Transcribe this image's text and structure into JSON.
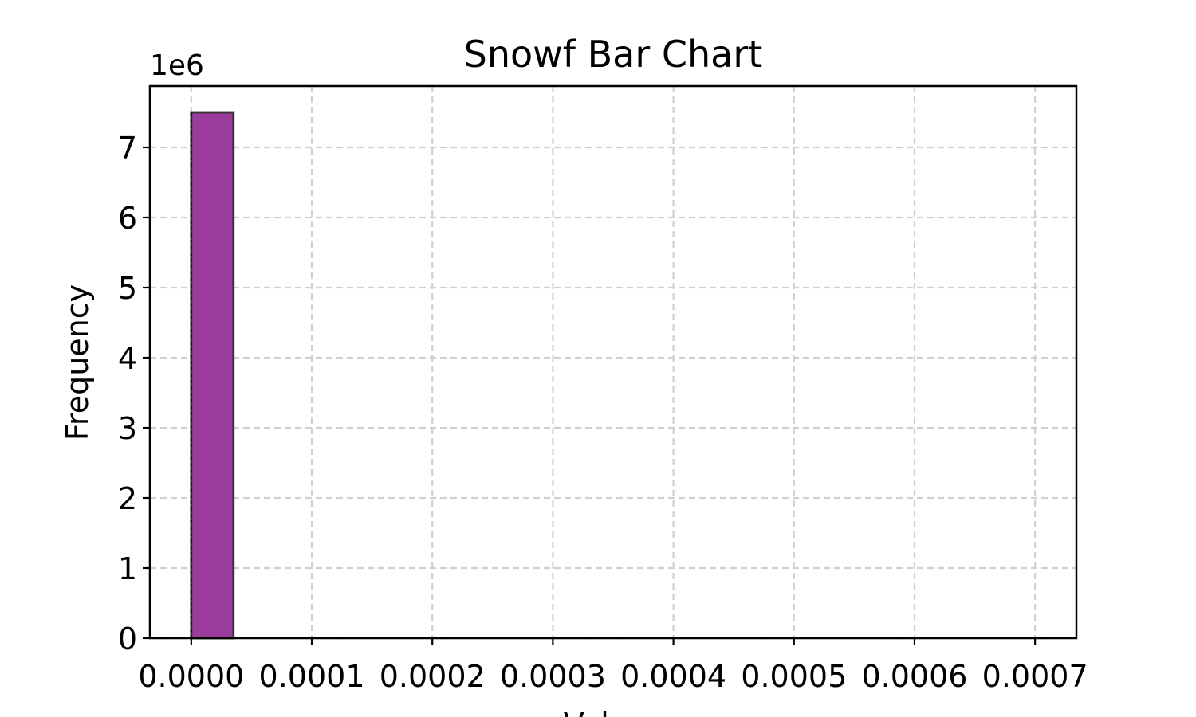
{
  "chart_data": {
    "type": "bar",
    "title": "Snowf Bar Chart",
    "xlabel": "Values",
    "ylabel": "Frequency",
    "y_offset_label": "1e6",
    "xlim": [
      -3.43e-05,
      0.0007343
    ],
    "ylim": [
      0,
      7875000
    ],
    "x_ticks": [
      {
        "value": 0,
        "label": "0.0000"
      },
      {
        "value": 0.0001,
        "label": "0.0001"
      },
      {
        "value": 0.0002,
        "label": "0.0002"
      },
      {
        "value": 0.0003,
        "label": "0.0003"
      },
      {
        "value": 0.0004,
        "label": "0.0004"
      },
      {
        "value": 0.0005,
        "label": "0.0005"
      },
      {
        "value": 0.0006,
        "label": "0.0006"
      },
      {
        "value": 0.0007,
        "label": "0.0007"
      }
    ],
    "y_ticks": [
      {
        "value": 0,
        "label": "0"
      },
      {
        "value": 1000000,
        "label": "1"
      },
      {
        "value": 2000000,
        "label": "2"
      },
      {
        "value": 3000000,
        "label": "3"
      },
      {
        "value": 4000000,
        "label": "4"
      },
      {
        "value": 5000000,
        "label": "5"
      },
      {
        "value": 6000000,
        "label": "6"
      },
      {
        "value": 7000000,
        "label": "7"
      }
    ],
    "bars": [
      {
        "x_start": 0,
        "x_end": 3.5e-05,
        "value": 7500000
      }
    ],
    "bar_color": "#9b3b9b",
    "bar_edge_color": "#333333",
    "grid": true,
    "grid_color": "#d0d0d0"
  }
}
